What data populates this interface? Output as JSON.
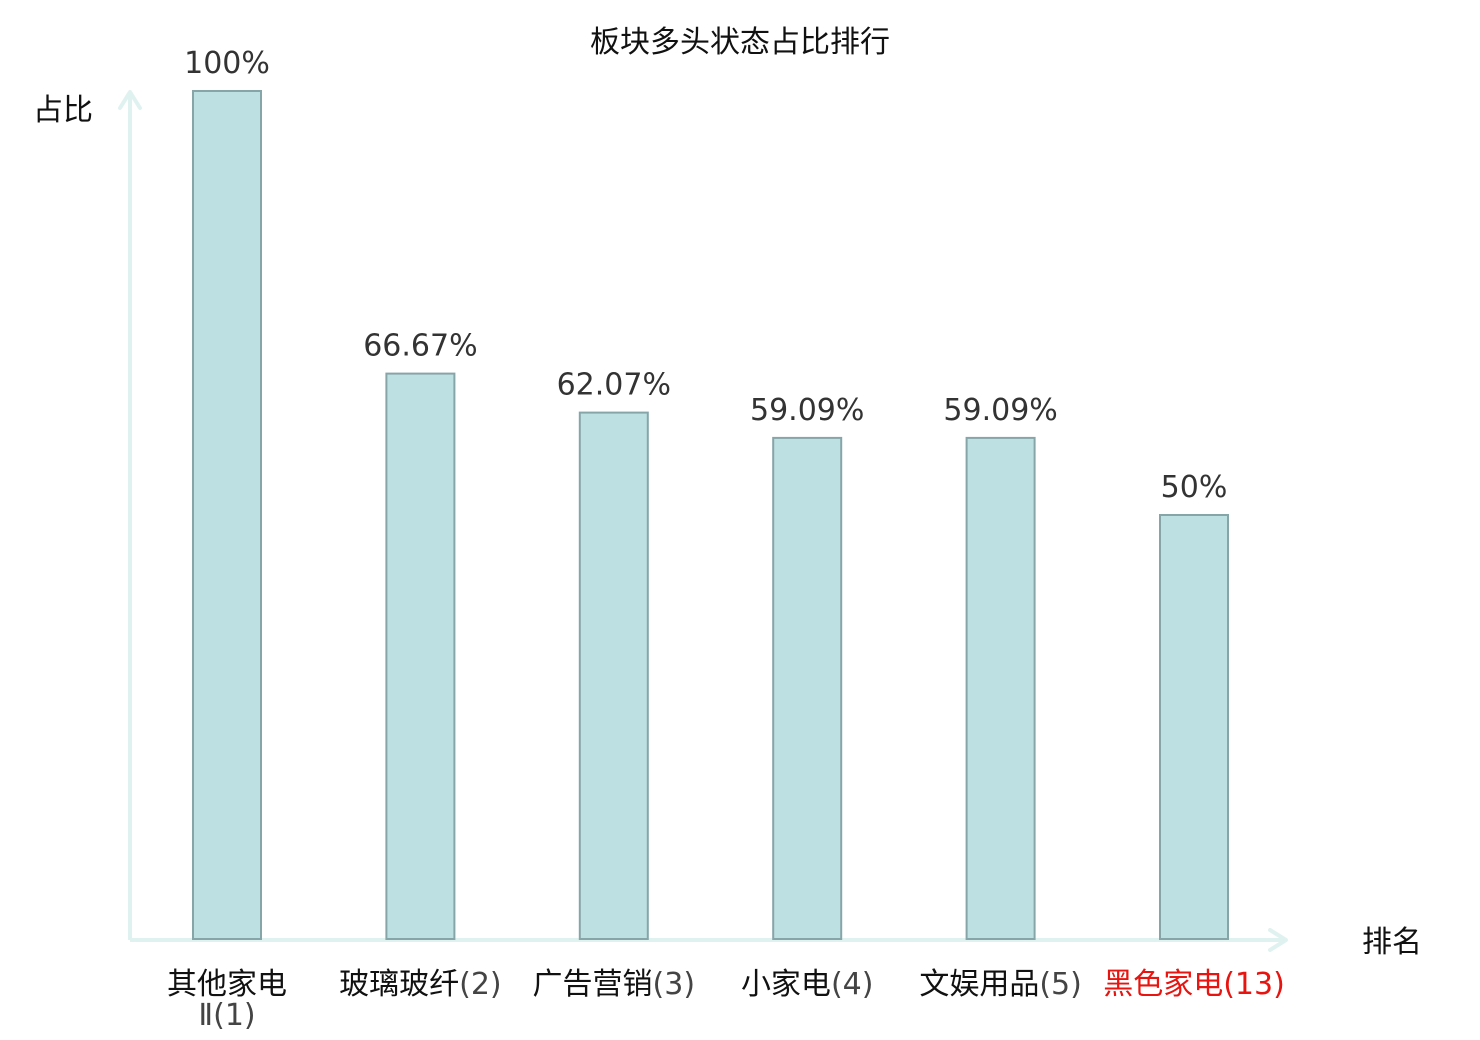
{
  "chart_data": {
    "type": "bar",
    "title": "板块多头状态占比排行",
    "ylabel": "占比",
    "xlabel": "排名",
    "ylim": [
      0,
      100
    ],
    "grid": false,
    "legend": "none",
    "categories": [
      {
        "name": "其他家电",
        "rank": "Ⅱ(1)",
        "highlight": false
      },
      {
        "name": "玻璃玻纤",
        "rank": "(2)",
        "highlight": false
      },
      {
        "name": "广告营销",
        "rank": "(3)",
        "highlight": false
      },
      {
        "name": "小家电",
        "rank": "(4)",
        "highlight": false
      },
      {
        "name": "文娱用品",
        "rank": "(5)",
        "highlight": false
      },
      {
        "name": "黑色家电",
        "rank": "(13)",
        "highlight": true
      }
    ],
    "values": [
      100,
      66.67,
      62.07,
      59.09,
      59.09,
      50
    ],
    "value_labels": [
      "100%",
      "66.67%",
      "62.07%",
      "59.09%",
      "59.09%",
      "50%"
    ],
    "colors": {
      "bar_fill": "#bde0e3",
      "bar_stroke": "#86a5a8",
      "axis": "#e0f2ef",
      "label_text": "#111111",
      "rank_text": "#444444",
      "highlight_text": "#e8140f",
      "value_text": "#333333"
    }
  }
}
